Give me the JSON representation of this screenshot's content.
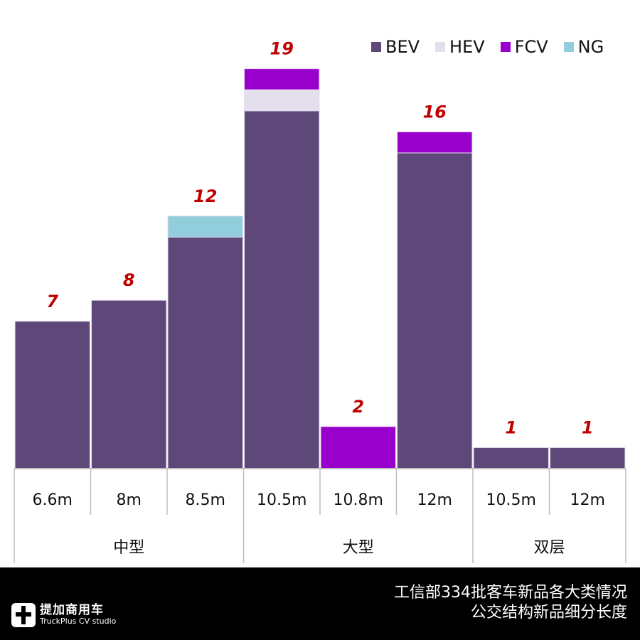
{
  "chart_data": {
    "type": "bar",
    "stacked": true,
    "title": "工信部334批客车新品各大类情况 公交结构新品细分长度",
    "groups": [
      {
        "name": "中型",
        "categories": [
          "6.6m",
          "8m",
          "8.5m"
        ]
      },
      {
        "name": "大型",
        "categories": [
          "10.5m",
          "10.8m",
          "12m"
        ]
      },
      {
        "name": "双层",
        "categories": [
          "10.5m",
          "12m"
        ]
      }
    ],
    "categories": [
      "6.6m",
      "8m",
      "8.5m",
      "10.5m",
      "10.8m",
      "12m",
      "10.5m",
      "12m"
    ],
    "series": [
      {
        "name": "BEV",
        "color": "#5e4879",
        "values": [
          7,
          8,
          11,
          17,
          0,
          15,
          1,
          1
        ]
      },
      {
        "name": "HEV",
        "color": "#e3dfec",
        "values": [
          0,
          0,
          0,
          1,
          0,
          0,
          0,
          0
        ]
      },
      {
        "name": "FCV",
        "color": "#9900cc",
        "values": [
          0,
          0,
          0,
          1,
          2,
          1,
          0,
          0
        ]
      },
      {
        "name": "NG",
        "color": "#92cddc",
        "values": [
          0,
          0,
          1,
          0,
          0,
          0,
          0,
          0
        ]
      }
    ],
    "totals": [
      7,
      8,
      12,
      19,
      2,
      16,
      1,
      1
    ],
    "total_label_color": "#c00000",
    "xlabel": "",
    "ylabel": "",
    "ylim": [
      0,
      20
    ],
    "grid": false,
    "legend_position": "top-right"
  },
  "legend": [
    {
      "label": "BEV",
      "color": "#5e4879"
    },
    {
      "label": "HEV",
      "color": "#e3dfec"
    },
    {
      "label": "FCV",
      "color": "#9900cc"
    },
    {
      "label": "NG",
      "color": "#92cddc"
    }
  ],
  "footer": {
    "logo_cn": "提加商用车",
    "logo_en": "TruckPlus CV studio",
    "title_line1": "工信部334批客车新品各大类情况",
    "title_line2": "公交结构新品细分长度"
  }
}
